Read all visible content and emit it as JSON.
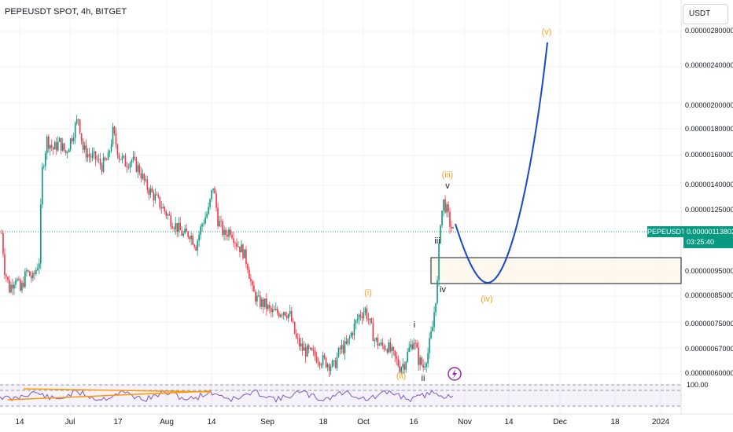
{
  "header": {
    "symbol_title": "PEPEUSDT SPOT, 4h, BITGET",
    "currency": "USDT"
  },
  "price_axis": {
    "labels": [
      {
        "text": "0.00000280000",
        "value": 280000
      },
      {
        "text": "0.00000240000",
        "value": 240000
      },
      {
        "text": "0.00000200000",
        "value": 200000
      },
      {
        "text": "0.00000180000",
        "value": 180000
      },
      {
        "text": "0.00000160000",
        "value": 160000
      },
      {
        "text": "0.00000140000",
        "value": 140000
      },
      {
        "text": "0.00000125000",
        "value": 125000
      },
      {
        "text": "0.00000095000",
        "value": 95000
      },
      {
        "text": "0.00000085000",
        "value": 85000
      },
      {
        "text": "0.00000075000",
        "value": 75000
      },
      {
        "text": "0.00000067000",
        "value": 67000
      },
      {
        "text": "0.00000060000",
        "value": 60000
      }
    ]
  },
  "time_axis": {
    "labels": [
      "14",
      "Jul",
      "17",
      "Aug",
      "14",
      "Sep",
      "18",
      "Oct",
      "16",
      "Nov",
      "14",
      "Dec",
      "18",
      "2024"
    ]
  },
  "current_price": {
    "symbol": "PEPEUSDT",
    "price": "0.00000113802",
    "countdown": "03:25:40",
    "color": "#089981"
  },
  "rsi": {
    "level_label": "100.00",
    "band_color": "#7e57c2"
  },
  "wave_labels": {
    "i_minor": "(i)",
    "ii_minor": "(ii)",
    "iii_minor": "(iii)",
    "iv_minor": "(iv)",
    "v_minor": "(v)",
    "i": "i",
    "ii": "ii",
    "iii": "iii",
    "iv": "iv",
    "v": "v"
  },
  "chart_data": {
    "type": "candlestick",
    "scale": "log",
    "up_color": "#089981",
    "down_color": "#f23645",
    "projection_color": "#1848cc",
    "wave_label_color": "#f7a21b",
    "zone": {
      "from": 91500,
      "to": 101000
    },
    "price_samples": [
      {
        "i": 0,
        "v": 113000
      },
      {
        "i": 2,
        "v": 96000
      },
      {
        "i": 5,
        "v": 88000
      },
      {
        "i": 9,
        "v": 93000
      },
      {
        "i": 12,
        "v": 87000
      },
      {
        "i": 16,
        "v": 95000
      },
      {
        "i": 20,
        "v": 92000
      },
      {
        "i": 24,
        "v": 100000
      },
      {
        "i": 26,
        "v": 150000
      },
      {
        "i": 29,
        "v": 172000
      },
      {
        "i": 33,
        "v": 165000
      },
      {
        "i": 37,
        "v": 170000
      },
      {
        "i": 41,
        "v": 162000
      },
      {
        "i": 45,
        "v": 175000
      },
      {
        "i": 49,
        "v": 190000
      },
      {
        "i": 52,
        "v": 165000
      },
      {
        "i": 56,
        "v": 160000
      },
      {
        "i": 60,
        "v": 158000
      },
      {
        "i": 64,
        "v": 153000
      },
      {
        "i": 68,
        "v": 158000
      },
      {
        "i": 71,
        "v": 178000
      },
      {
        "i": 75,
        "v": 160000
      },
      {
        "i": 79,
        "v": 155000
      },
      {
        "i": 83,
        "v": 157000
      },
      {
        "i": 88,
        "v": 150000
      },
      {
        "i": 92,
        "v": 140000
      },
      {
        "i": 96,
        "v": 135000
      },
      {
        "i": 100,
        "v": 130000
      },
      {
        "i": 104,
        "v": 125000
      },
      {
        "i": 108,
        "v": 120000
      },
      {
        "i": 112,
        "v": 116000
      },
      {
        "i": 116,
        "v": 112000
      },
      {
        "i": 120,
        "v": 113000
      },
      {
        "i": 124,
        "v": 107000
      },
      {
        "i": 128,
        "v": 118000
      },
      {
        "i": 132,
        "v": 125000
      },
      {
        "i": 135,
        "v": 140000
      },
      {
        "i": 138,
        "v": 120000
      },
      {
        "i": 142,
        "v": 112000
      },
      {
        "i": 146,
        "v": 115000
      },
      {
        "i": 150,
        "v": 108000
      },
      {
        "i": 154,
        "v": 104000
      },
      {
        "i": 157,
        "v": 98000
      },
      {
        "i": 160,
        "v": 87000
      },
      {
        "i": 164,
        "v": 83000
      },
      {
        "i": 168,
        "v": 82000
      },
      {
        "i": 172,
        "v": 79000
      },
      {
        "i": 176,
        "v": 79000
      },
      {
        "i": 180,
        "v": 80000
      },
      {
        "i": 184,
        "v": 78000
      },
      {
        "i": 188,
        "v": 70000
      },
      {
        "i": 192,
        "v": 67000
      },
      {
        "i": 196,
        "v": 66000
      },
      {
        "i": 200,
        "v": 65000
      },
      {
        "i": 204,
        "v": 64000
      },
      {
        "i": 208,
        "v": 63000
      },
      {
        "i": 212,
        "v": 62000
      },
      {
        "i": 216,
        "v": 67000
      },
      {
        "i": 220,
        "v": 68000
      },
      {
        "i": 224,
        "v": 73000
      },
      {
        "i": 228,
        "v": 78000
      },
      {
        "i": 232,
        "v": 80000
      },
      {
        "i": 235,
        "v": 75000
      },
      {
        "i": 238,
        "v": 70000
      },
      {
        "i": 242,
        "v": 68000
      },
      {
        "i": 246,
        "v": 68000
      },
      {
        "i": 250,
        "v": 65000
      },
      {
        "i": 254,
        "v": 62000
      },
      {
        "i": 257,
        "v": 63000
      },
      {
        "i": 260,
        "v": 67000
      },
      {
        "i": 263,
        "v": 70000
      },
      {
        "i": 266,
        "v": 64000
      },
      {
        "i": 269,
        "v": 62000
      },
      {
        "i": 272,
        "v": 66000
      },
      {
        "i": 275,
        "v": 74000
      },
      {
        "i": 278,
        "v": 90000
      },
      {
        "i": 280,
        "v": 120000
      },
      {
        "i": 282,
        "v": 130000
      },
      {
        "i": 284,
        "v": 125000
      },
      {
        "i": 286,
        "v": 118000
      },
      {
        "i": 288,
        "v": 113802
      }
    ]
  }
}
